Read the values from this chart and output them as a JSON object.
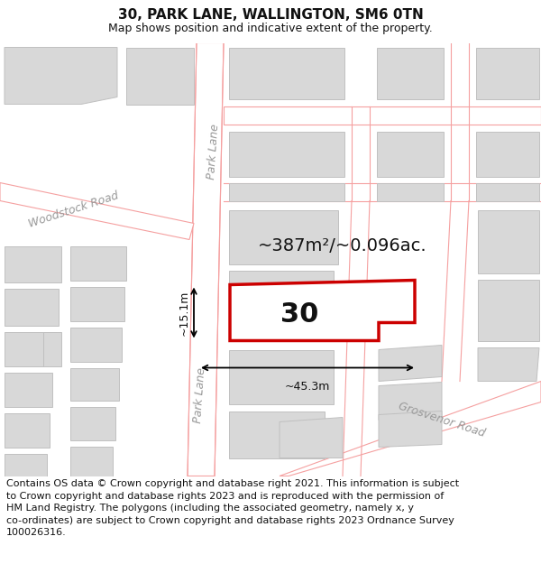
{
  "title": "30, PARK LANE, WALLINGTON, SM6 0TN",
  "subtitle": "Map shows position and indicative extent of the property.",
  "footer_line1": "Contains OS data © Crown copyright and database right 2021. This information is subject",
  "footer_line2": "to Crown copyright and database rights 2023 and is reproduced with the permission of",
  "footer_line3": "HM Land Registry. The polygons (including the associated geometry, namely x, y",
  "footer_line4": "co-ordinates) are subject to Crown copyright and database rights 2023 Ordnance Survey",
  "footer_line5": "100026316.",
  "map_bg": "#f0f0f0",
  "building_fill": "#d8d8d8",
  "building_edge": "#c0c0c0",
  "road_fill": "#ffffff",
  "road_edge": "#f5a0a0",
  "highlighted_fill": "#ffffff",
  "highlighted_edge": "#cc0000",
  "area_label": "~387m²/~0.096ac.",
  "number_label": "30",
  "width_label": "~45.3m",
  "height_label": "~15.1m",
  "street_label_park_lane_top": "Park Lane",
  "street_label_park_lane_mid": "Park Lane",
  "street_label_woodstock": "Woodstock Road",
  "street_label_grosvenor": "Grosvenor Road",
  "title_fontsize": 11,
  "subtitle_fontsize": 9,
  "footer_fontsize": 8,
  "number_fontsize": 22,
  "area_fontsize": 14,
  "street_fontsize": 9,
  "dim_fontsize": 9
}
